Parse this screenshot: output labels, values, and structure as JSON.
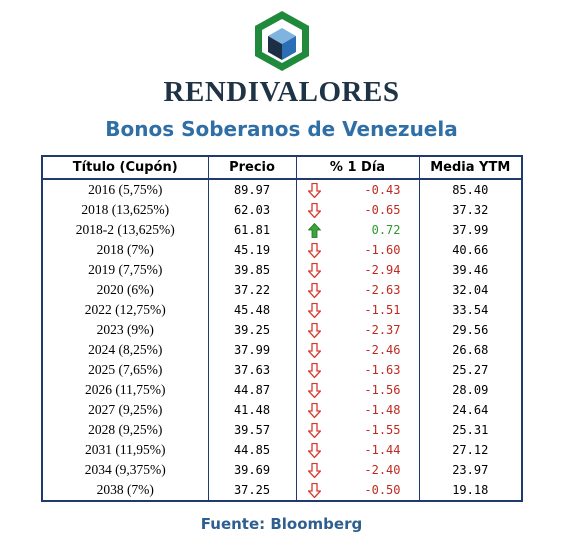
{
  "brand": "RENDIVALORES",
  "subtitle": "Bonos Soberanos de Venezuela",
  "colors": {
    "down": "#c0291f",
    "up": "#2c9a2c",
    "header_border": "#1f3b6e",
    "logo_green": "#1f8a3c",
    "logo_blue": "#2a6fb5"
  },
  "table": {
    "headers": [
      "Título (Cupón)",
      "Precio",
      "% 1 Día",
      "Media YTM"
    ],
    "rows": [
      {
        "titulo": "2016 (5,75%)",
        "precio": "89.97",
        "cambio": "-0.43",
        "dir": "down",
        "ytm": "85.40"
      },
      {
        "titulo": "2018 (13,625%)",
        "precio": "62.03",
        "cambio": "-0.65",
        "dir": "down",
        "ytm": "37.32"
      },
      {
        "titulo": "2018-2 (13,625%)",
        "precio": "61.81",
        "cambio": "0.72",
        "dir": "up",
        "ytm": "37.99"
      },
      {
        "titulo": "2018 (7%)",
        "precio": "45.19",
        "cambio": "-1.60",
        "dir": "down",
        "ytm": "40.66"
      },
      {
        "titulo": "2019 (7,75%)",
        "precio": "39.85",
        "cambio": "-2.94",
        "dir": "down",
        "ytm": "39.46"
      },
      {
        "titulo": "2020 (6%)",
        "precio": "37.22",
        "cambio": "-2.63",
        "dir": "down",
        "ytm": "32.04"
      },
      {
        "titulo": "2022 (12,75%)",
        "precio": "45.48",
        "cambio": "-1.51",
        "dir": "down",
        "ytm": "33.54"
      },
      {
        "titulo": "2023 (9%)",
        "precio": "39.25",
        "cambio": "-2.37",
        "dir": "down",
        "ytm": "29.56"
      },
      {
        "titulo": "2024 (8,25%)",
        "precio": "37.99",
        "cambio": "-2.46",
        "dir": "down",
        "ytm": "26.68"
      },
      {
        "titulo": "2025 (7,65%)",
        "precio": "37.63",
        "cambio": "-1.63",
        "dir": "down",
        "ytm": "25.27"
      },
      {
        "titulo": "2026 (11,75%)",
        "precio": "44.87",
        "cambio": "-1.56",
        "dir": "down",
        "ytm": "28.09"
      },
      {
        "titulo": "2027 (9,25%)",
        "precio": "41.48",
        "cambio": "-1.48",
        "dir": "down",
        "ytm": "24.64"
      },
      {
        "titulo": "2028 (9,25%)",
        "precio": "39.57",
        "cambio": "-1.55",
        "dir": "down",
        "ytm": "25.31"
      },
      {
        "titulo": "2031 (11,95%)",
        "precio": "44.85",
        "cambio": "-1.44",
        "dir": "down",
        "ytm": "27.12"
      },
      {
        "titulo": "2034 (9,375%)",
        "precio": "39.69",
        "cambio": "-2.40",
        "dir": "down",
        "ytm": "23.97"
      },
      {
        "titulo": "2038 (7%)",
        "precio": "37.25",
        "cambio": "-0.50",
        "dir": "down",
        "ytm": "19.18"
      }
    ]
  },
  "source": "Fuente: Bloomberg"
}
